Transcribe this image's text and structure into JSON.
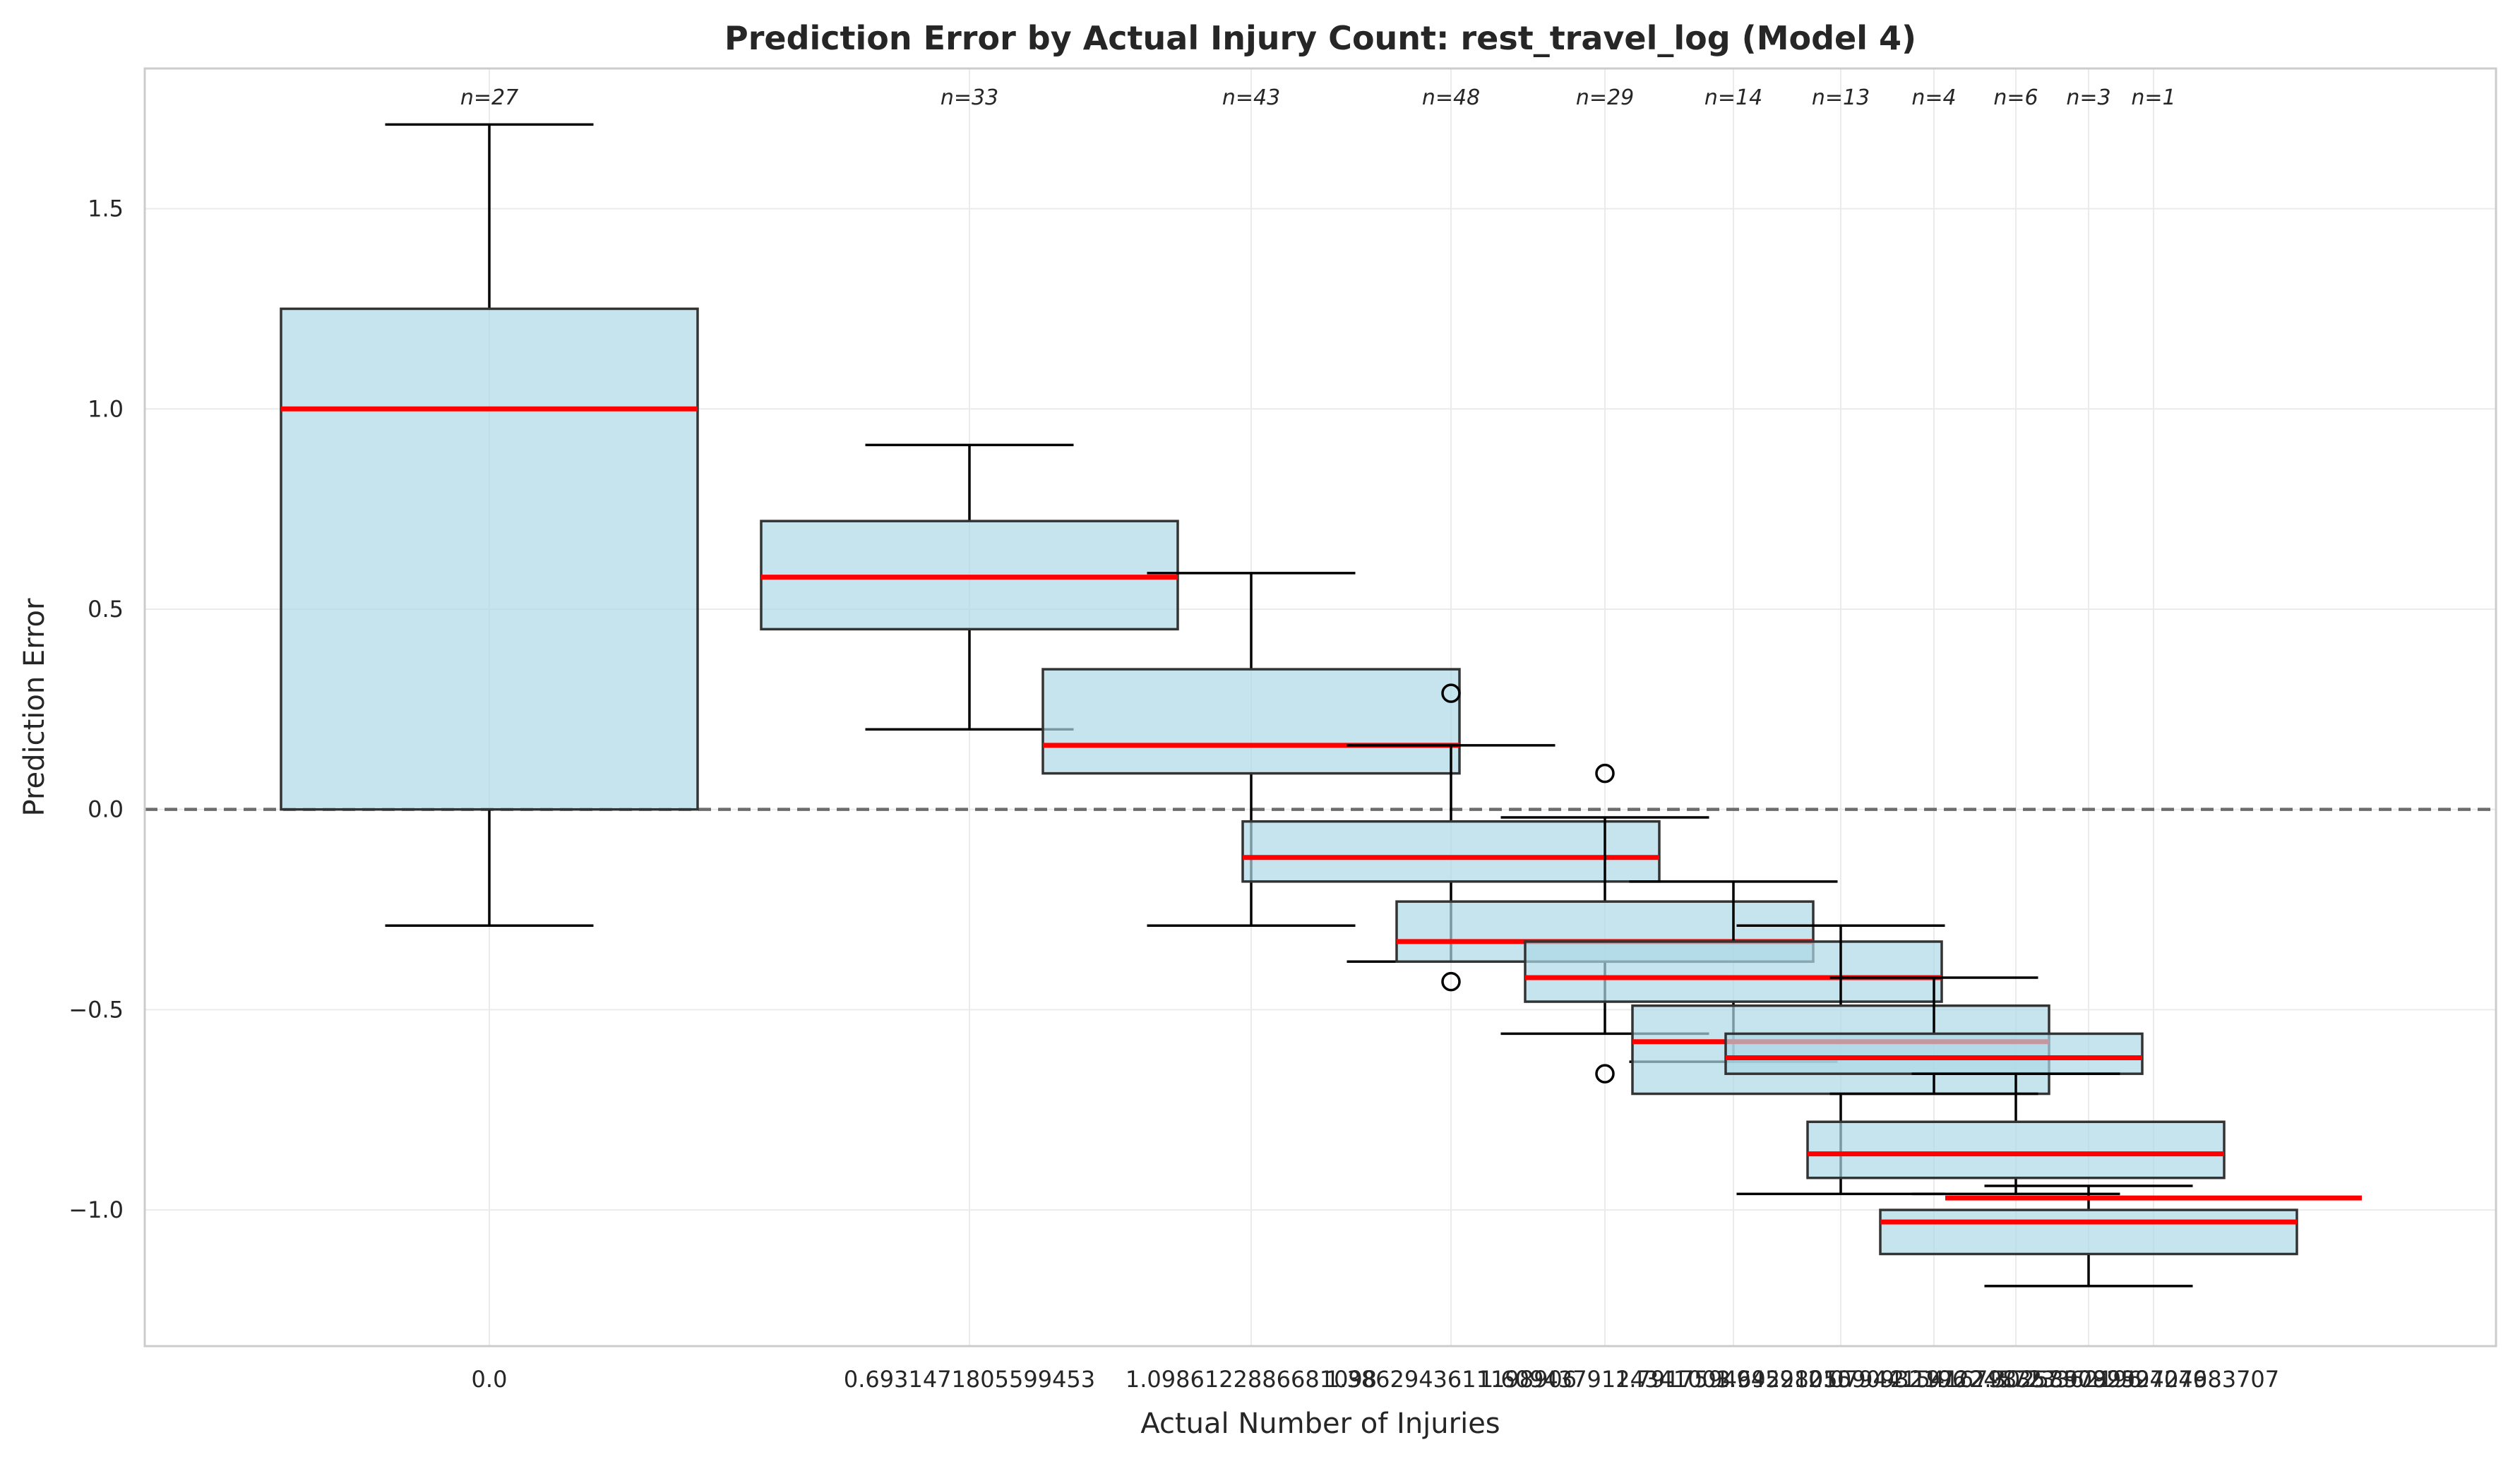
{
  "chart_data": {
    "type": "box",
    "title": "Prediction Error by Actual Injury Count: rest_travel_log (Model 4)",
    "xlabel": "Actual Number of Injuries",
    "ylabel": "Prediction Error",
    "ylim": [
      -1.34,
      1.85
    ],
    "yticks": [
      -1.0,
      -0.5,
      0.0,
      0.5,
      1.0,
      1.5
    ],
    "ytick_labels": [
      "−1.0",
      "−0.5",
      "0.0",
      "0.5",
      "1.0",
      "1.5"
    ],
    "reference_line": {
      "y": 0.0,
      "style": "dashed",
      "color": "#555555"
    },
    "grid": true,
    "box_color": "#add8e6",
    "median_color": "#ff0000",
    "xtick_labels_combined": [
      "0.0",
      "0.6931471805599453",
      "1.0986122886681098",
      "1.3862943611198906",
      "1.6094379124341003",
      "1.791759469228055",
      "1.9459101090932196",
      "2.0794415416798357",
      "2.1972245773362196",
      "2.302585092994046",
      "2.3978952727983707"
    ],
    "xtick_label_text": [
      "0.0",
      "0.6931471805599453",
      "1.0986122886681098",
      "1.3862943611198906",
      "1.6094379124341003",
      "1.791759469228055",
      "1.9459101090932196",
      "2.0794415416798357",
      "2.1972245773362196",
      "2.302585092994046",
      "2.3978952727983707"
    ],
    "boxes": [
      {
        "x": 0.0,
        "n_label": "n=27",
        "q1": 0.0,
        "median": 1.0,
        "q3": 1.25,
        "whisker_low": -0.29,
        "whisker_high": 1.71,
        "fliers": []
      },
      {
        "x": 0.6931471805599453,
        "n_label": "n=33",
        "q1": 0.45,
        "median": 0.58,
        "q3": 0.72,
        "whisker_low": 0.2,
        "whisker_high": 0.91,
        "fliers": []
      },
      {
        "x": 1.0986122886681098,
        "n_label": "n=43",
        "q1": 0.09,
        "median": 0.16,
        "q3": 0.35,
        "whisker_low": -0.29,
        "whisker_high": 0.59,
        "fliers": []
      },
      {
        "x": 1.3862943611198906,
        "n_label": "n=48",
        "q1": -0.18,
        "median": -0.12,
        "q3": -0.03,
        "whisker_low": -0.38,
        "whisker_high": 0.16,
        "fliers": [
          0.29,
          -0.43
        ]
      },
      {
        "x": 1.6094379124341003,
        "n_label": "n=29",
        "q1": -0.38,
        "median": -0.33,
        "q3": -0.23,
        "whisker_low": -0.56,
        "whisker_high": -0.02,
        "fliers": [
          0.09,
          -0.66
        ]
      },
      {
        "x": 1.791759469228055,
        "n_label": "n=14",
        "q1": -0.48,
        "median": -0.42,
        "q3": -0.33,
        "whisker_low": -0.63,
        "whisker_high": -0.18,
        "fliers": []
      },
      {
        "x": 1.9459101090932196,
        "n_label": "n=13",
        "q1": -0.71,
        "median": -0.58,
        "q3": -0.49,
        "whisker_low": -0.96,
        "whisker_high": -0.29,
        "fliers": []
      },
      {
        "x": 2.0794415416798357,
        "n_label": "n=4",
        "q1": -0.66,
        "median": -0.62,
        "q3": -0.56,
        "whisker_low": -0.71,
        "whisker_high": -0.42,
        "fliers": []
      },
      {
        "x": 2.1972245773362196,
        "n_label": "n=6",
        "q1": -0.92,
        "median": -0.86,
        "q3": -0.78,
        "whisker_low": -0.96,
        "whisker_high": -0.66,
        "fliers": []
      },
      {
        "x": 2.302585092994046,
        "n_label": "n=3",
        "q1": -1.11,
        "median": -1.03,
        "q3": -1.0,
        "whisker_low": -1.19,
        "whisker_high": -0.94,
        "fliers": []
      },
      {
        "x": 2.3978952727983707,
        "n_label": "n=1",
        "q1": -0.97,
        "median": -0.97,
        "q3": -0.97,
        "whisker_low": -0.97,
        "whisker_high": -0.97,
        "fliers": []
      }
    ]
  }
}
